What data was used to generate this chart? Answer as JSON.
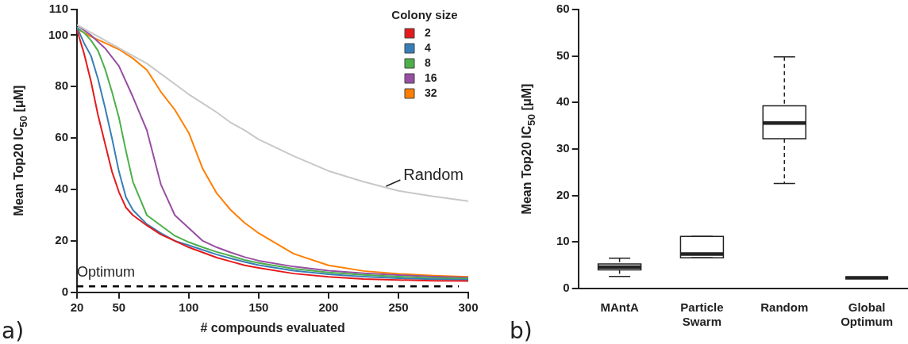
{
  "chart_data": [
    {
      "type": "line",
      "xlabel": "# compounds evaluated",
      "ylabel": "Mean Top20 IC$_{50}$ [μM]",
      "legend_title": "Colony size",
      "legend": "top right",
      "marker": "none",
      "xlim": [
        20,
        300
      ],
      "xticks": [
        20,
        50,
        100,
        150,
        200,
        250,
        300
      ],
      "ylim": [
        0,
        110
      ],
      "yticks": [
        0,
        20,
        40,
        60,
        80,
        100,
        110
      ],
      "series": [
        {
          "color": "#c8c8c8",
          "x": [
            20,
            30,
            40,
            50,
            60,
            70,
            80,
            90,
            100,
            110,
            120,
            130,
            140,
            150,
            175,
            200,
            225,
            250,
            275,
            300
          ],
          "values": [
            104,
            101,
            98,
            95,
            92,
            89,
            85,
            81,
            77,
            73.5,
            70,
            66,
            63,
            59.5,
            53,
            47.2,
            43,
            39.5,
            37.3,
            35.5
          ]
        },
        {
          "name": "2",
          "color": "#e41a1c",
          "x": [
            20,
            25,
            30,
            35,
            40,
            45,
            50,
            55,
            60,
            70,
            80,
            90,
            100,
            110,
            120,
            130,
            140,
            150,
            175,
            200,
            225,
            250,
            275,
            300
          ],
          "values": [
            102,
            93,
            82,
            69,
            58,
            47,
            39,
            33,
            30,
            26,
            22.5,
            20,
            17.5,
            15.5,
            13.5,
            12,
            10.5,
            9.5,
            7.3,
            6,
            5.2,
            4.8,
            4.5,
            4.4
          ]
        },
        {
          "name": "4",
          "color": "#377eb8",
          "x": [
            20,
            25,
            30,
            35,
            40,
            45,
            50,
            55,
            60,
            70,
            80,
            90,
            100,
            110,
            120,
            130,
            140,
            150,
            175,
            200,
            225,
            250,
            275,
            300
          ],
          "values": [
            103,
            97,
            92,
            83,
            72,
            60,
            47,
            37,
            32,
            26.5,
            23,
            20,
            18.3,
            16.5,
            14.7,
            13.2,
            11.8,
            10.6,
            8.4,
            7,
            6.1,
            5.5,
            5.1,
            4.9
          ]
        },
        {
          "name": "8",
          "color": "#4daf4a",
          "x": [
            20,
            25,
            30,
            35,
            40,
            45,
            50,
            55,
            60,
            70,
            80,
            90,
            100,
            110,
            120,
            130,
            140,
            150,
            175,
            200,
            225,
            250,
            275,
            300
          ],
          "values": [
            103,
            101,
            98,
            94,
            87,
            78,
            68,
            55,
            43,
            30,
            26,
            22,
            19.5,
            17.5,
            15.7,
            14.2,
            12.6,
            11.4,
            9.2,
            7.7,
            6.8,
            6.1,
            5.6,
            5.3
          ]
        },
        {
          "name": "16",
          "color": "#984ea3",
          "x": [
            20,
            30,
            40,
            50,
            60,
            70,
            80,
            90,
            100,
            110,
            120,
            130,
            140,
            150,
            175,
            200,
            225,
            250,
            275,
            300
          ],
          "values": [
            104,
            100,
            95,
            88,
            76,
            63,
            42,
            30,
            25,
            20,
            17.5,
            15.5,
            13.7,
            12.3,
            10,
            8.4,
            7.4,
            6.7,
            6.1,
            5.7
          ]
        },
        {
          "name": "32",
          "color": "#ff7f00",
          "x": [
            20,
            30,
            40,
            50,
            60,
            70,
            80,
            90,
            100,
            110,
            120,
            130,
            140,
            150,
            175,
            200,
            225,
            250,
            275,
            300
          ],
          "values": [
            102.5,
            99.5,
            97,
            94.5,
            91,
            86.5,
            78,
            71,
            62,
            48,
            38.5,
            32,
            27,
            23,
            15,
            10.5,
            8.3,
            7.2,
            6.5,
            6.0
          ]
        }
      ],
      "ref_lines": [
        {
          "axis": "y",
          "value": 2.3,
          "label": "Optimum",
          "color": "#000000",
          "line_style": "dashed"
        }
      ],
      "annotations": [
        {
          "text": "Random",
          "x": 240,
          "y": 40
        },
        "a)"
      ]
    },
    {
      "type": "box",
      "ylabel": "Mean Top20 IC$_{50}$ [μM]",
      "categories": [
        "MAntA",
        "Particle Swarm",
        "Random",
        "Global Optimum"
      ],
      "ylim": [
        0,
        60
      ],
      "yticks": [
        0,
        10,
        20,
        30,
        40,
        50,
        60
      ],
      "boxes": [
        {
          "low": 2.6,
          "q1": 4.0,
          "median": 4.6,
          "q3": 5.3,
          "high": 6.5
        },
        {
          "low": 6.6,
          "q1": 6.6,
          "median": 7.4,
          "q3": 11.2,
          "high": 11.2
        },
        {
          "low": 22.6,
          "q1": 32.2,
          "median": 35.6,
          "q3": 39.3,
          "high": 49.8
        },
        {
          "low": 2.3,
          "q1": 2.3,
          "median": 2.3,
          "q3": 2.3,
          "high": 2.3
        }
      ],
      "annotations": [
        "b)"
      ]
    }
  ]
}
